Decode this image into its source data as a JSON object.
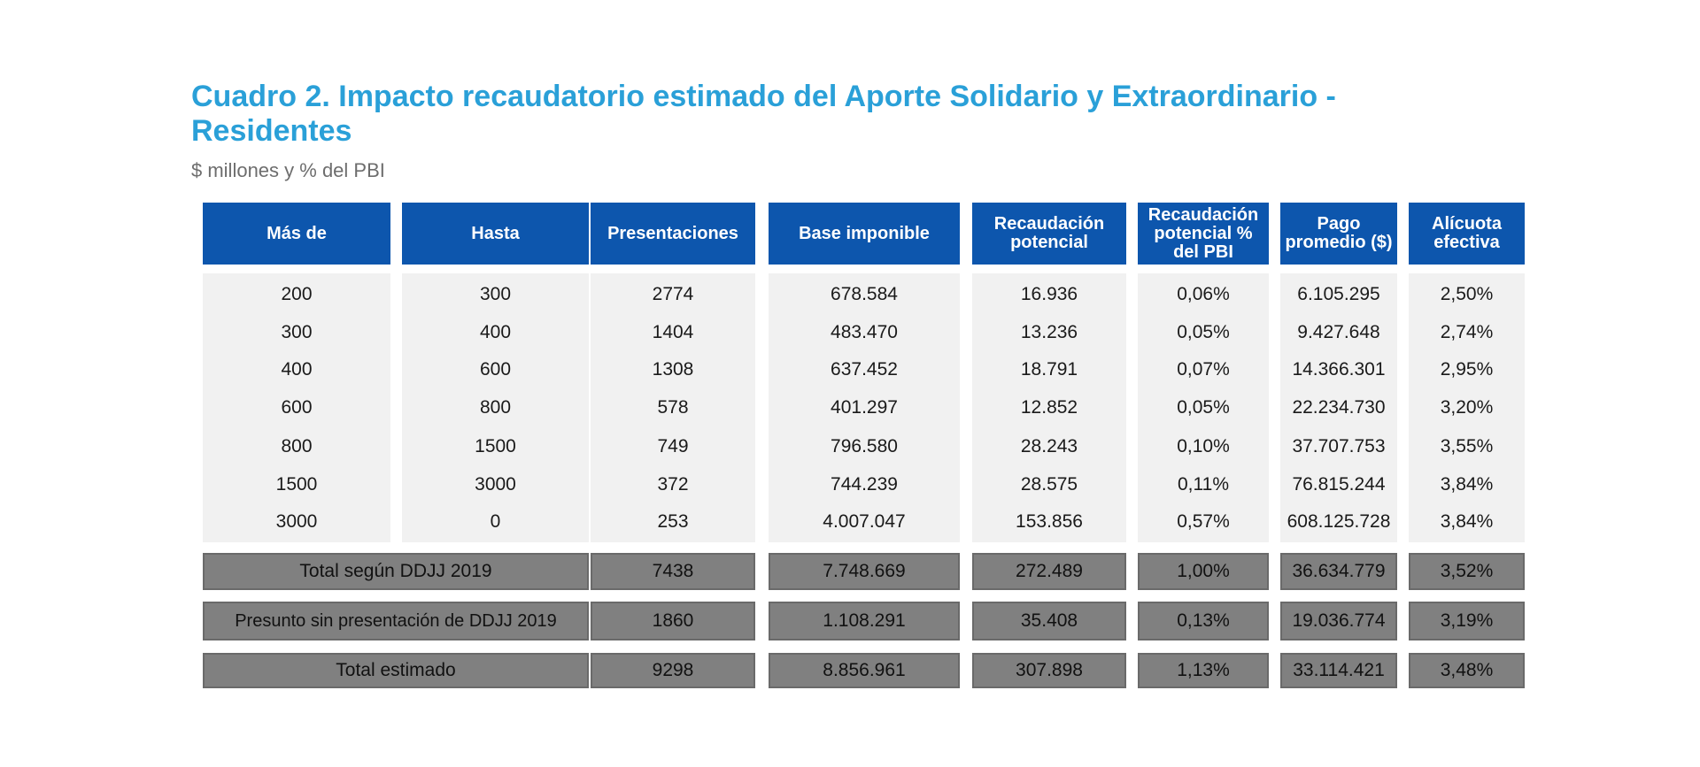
{
  "title": "Cuadro 2. Impacto recaudatorio estimado del Aporte Solidario y Extraordinario - Residentes",
  "subtitle": "$ millones y % del PBI",
  "headers": [
    "Más de",
    "Hasta",
    "Presentaciones",
    "Base imponible",
    "Recaudación potencial",
    "Recaudación potencial % del PBI",
    "Pago promedio ($)",
    "Alícuota efectiva"
  ],
  "rows": [
    [
      "200",
      "300",
      "2774",
      "678.584",
      "16.936",
      "0,06%",
      "6.105.295",
      "2,50%"
    ],
    [
      "300",
      "400",
      "1404",
      "483.470",
      "13.236",
      "0,05%",
      "9.427.648",
      "2,74%"
    ],
    [
      "400",
      "600",
      "1308",
      "637.452",
      "18.791",
      "0,07%",
      "14.366.301",
      "2,95%"
    ],
    [
      "600",
      "800",
      "578",
      "401.297",
      "12.852",
      "0,05%",
      "22.234.730",
      "3,20%"
    ],
    [
      "800",
      "1500",
      "749",
      "796.580",
      "28.243",
      "0,10%",
      "37.707.753",
      "3,55%"
    ],
    [
      "1500",
      "3000",
      "372",
      "744.239",
      "28.575",
      "0,11%",
      "76.815.244",
      "3,84%"
    ],
    [
      "3000",
      "0",
      "253",
      "4.007.047",
      "153.856",
      "0,57%",
      "608.125.728",
      "3,84%"
    ]
  ],
  "totals": [
    [
      "Total según DDJJ 2019",
      "7438",
      "7.748.669",
      "272.489",
      "1,00%",
      "36.634.779",
      "3,52%"
    ],
    [
      "Presunto sin presentación de DDJJ 2019",
      "1860",
      "1.108.291",
      "35.408",
      "0,13%",
      "19.036.774",
      "3,19%"
    ],
    [
      "Total estimado",
      "9298",
      "8.856.961",
      "307.898",
      "1,13%",
      "33.114.421",
      "3,48%"
    ]
  ]
}
